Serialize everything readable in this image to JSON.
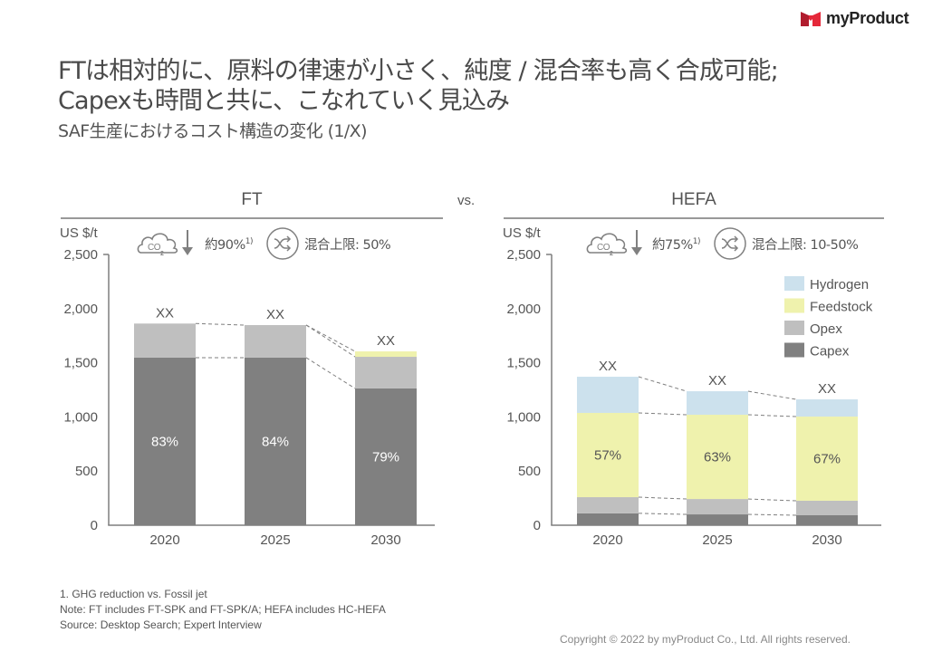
{
  "brand": {
    "name": "myProduct",
    "logo_colors": [
      "#b01c2e",
      "#e5283a"
    ]
  },
  "title_lines": [
    "FTは相対的に、原料の律速が小さく、純度 / 混合率も高く合成可能;",
    "Capexも時間と共に、こなれていく見込み"
  ],
  "subtitle": "SAF生産におけるコスト構造の変化 (1/X)",
  "vs_label": "vs.",
  "colors": {
    "Hydrogen": "#cce1ed",
    "Feedstock": "#eff2ad",
    "Opex": "#bfbfbf",
    "Capex": "#808080",
    "axis": "#7f7f7f",
    "connector": "#7f7f7f"
  },
  "panels": [
    {
      "name": "FT",
      "unit_label": "US $/t",
      "co2_icon": "co2-reduction-icon",
      "co2_label": "約90%",
      "co2_sup": "1)",
      "blend_icon": "shuffle-icon",
      "blend_label": "混合上限: 50%"
    },
    {
      "name": "HEFA",
      "unit_label": "US $/t",
      "co2_icon": "co2-reduction-icon",
      "co2_label": "約75%",
      "co2_sup": "1)",
      "blend_icon": "shuffle-icon",
      "blend_label": "混合上限: 10-50%"
    }
  ],
  "chart_data": [
    {
      "type": "bar",
      "stacked": true,
      "title": "FT",
      "ylabel": "US $/t",
      "xlabel": "",
      "ylim": [
        0,
        2500
      ],
      "yticks": [
        0,
        500,
        1000,
        1500,
        2000,
        2500
      ],
      "ytick_labels": [
        "0",
        "500",
        "1,000",
        "1,500",
        "2,000",
        "2,500"
      ],
      "categories": [
        "2020",
        "2025",
        "2030"
      ],
      "series": [
        {
          "name": "Capex",
          "values": [
            1547,
            1547,
            1263
          ]
        },
        {
          "name": "Opex",
          "values": [
            315,
            301,
            292
          ]
        },
        {
          "name": "Feedstock",
          "values": [
            0,
            0,
            50
          ]
        },
        {
          "name": "Hydrogen",
          "values": [
            0,
            0,
            0
          ]
        }
      ],
      "total_labels": [
        "XX",
        "XX",
        "XX"
      ],
      "inner_labels": [
        {
          "series": "Capex",
          "labels": [
            "83%",
            "84%",
            "79%"
          ]
        }
      ],
      "grid": false,
      "legend": "none"
    },
    {
      "type": "bar",
      "stacked": true,
      "title": "HEFA",
      "ylabel": "US $/t",
      "xlabel": "",
      "ylim": [
        0,
        2500
      ],
      "yticks": [
        0,
        500,
        1000,
        1500,
        2000,
        2500
      ],
      "ytick_labels": [
        "0",
        "500",
        "1,000",
        "1,500",
        "2,000",
        "2,500"
      ],
      "categories": [
        "2020",
        "2025",
        "2030"
      ],
      "series": [
        {
          "name": "Capex",
          "values": [
            110,
            100,
            92
          ]
        },
        {
          "name": "Opex",
          "values": [
            149,
            142,
            134
          ]
        },
        {
          "name": "Feedstock",
          "values": [
            778,
            778,
            777
          ]
        },
        {
          "name": "Hydrogen",
          "values": [
            334,
            217,
            159
          ]
        }
      ],
      "total_labels": [
        "XX",
        "XX",
        "XX"
      ],
      "inner_labels": [
        {
          "series": "Feedstock",
          "labels": [
            "57%",
            "63%",
            "67%"
          ]
        }
      ],
      "grid": false,
      "legend": "top-right",
      "legend_items": [
        "Hydrogen",
        "Feedstock",
        "Opex",
        "Capex"
      ]
    }
  ],
  "footnotes": [
    "1. GHG reduction vs. Fossil jet",
    "Note: FT includes FT-SPK and FT-SPK/A; HEFA includes HC-HEFA",
    "Source: Desktop Search; Expert Interview"
  ],
  "copyright": "Copyright © 2022 by myProduct Co., Ltd.  All rights reserved."
}
